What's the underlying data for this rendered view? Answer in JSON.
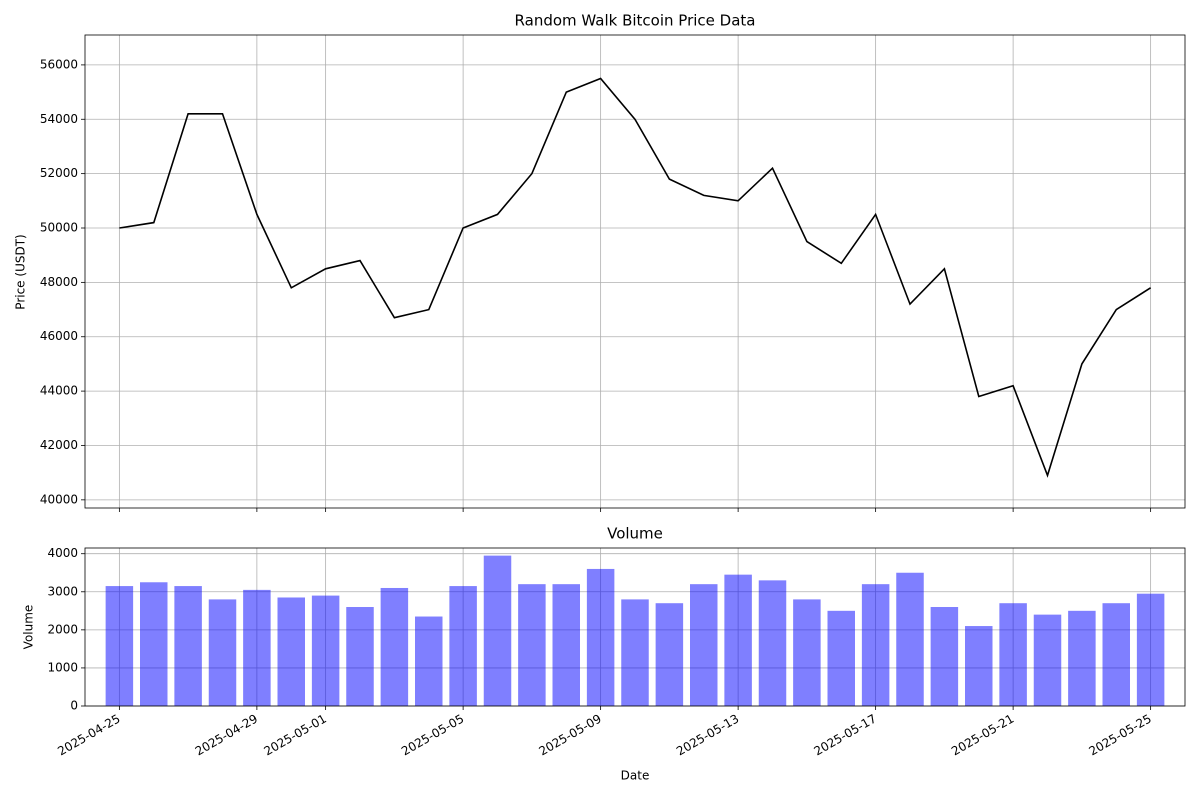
{
  "chart_data": [
    {
      "type": "line",
      "title": "Random Walk Bitcoin Price Data",
      "y_label": "Price (USDT)",
      "color": "#000000",
      "grid": true,
      "x": [
        "2025-04-25",
        "2025-04-26",
        "2025-04-27",
        "2025-04-28",
        "2025-04-29",
        "2025-04-30",
        "2025-05-01",
        "2025-05-02",
        "2025-05-03",
        "2025-05-04",
        "2025-05-05",
        "2025-05-06",
        "2025-05-07",
        "2025-05-08",
        "2025-05-09",
        "2025-05-10",
        "2025-05-11",
        "2025-05-12",
        "2025-05-13",
        "2025-05-14",
        "2025-05-15",
        "2025-05-16",
        "2025-05-17",
        "2025-05-18",
        "2025-05-19",
        "2025-05-20",
        "2025-05-21",
        "2025-05-22",
        "2025-05-23",
        "2025-05-24",
        "2025-05-25"
      ],
      "values": [
        50000,
        50200,
        54200,
        54200,
        50500,
        47800,
        48500,
        48800,
        46700,
        47000,
        50000,
        50500,
        52000,
        55000,
        55500,
        54000,
        51800,
        51200,
        51000,
        52200,
        49500,
        48700,
        50500,
        47200,
        48500,
        43800,
        44200,
        40900,
        45000,
        47000,
        47800
      ],
      "xlim": [
        "2025-04-24",
        "2025-05-26"
      ],
      "xticks": [
        "2025-04-25",
        "2025-04-29",
        "2025-05-01",
        "2025-05-05",
        "2025-05-09",
        "2025-05-13",
        "2025-05-17",
        "2025-05-21",
        "2025-05-25"
      ],
      "ylim": [
        39700,
        57100
      ],
      "yticks": [
        40000,
        42000,
        44000,
        46000,
        48000,
        50000,
        52000,
        54000,
        56000
      ]
    },
    {
      "type": "bar",
      "title": "Volume",
      "x_label": "Date",
      "y_label": "Volume",
      "color": "#0000ff",
      "alpha": 0.5,
      "grid": true,
      "x": [
        "2025-04-25",
        "2025-04-26",
        "2025-04-27",
        "2025-04-28",
        "2025-04-29",
        "2025-04-30",
        "2025-05-01",
        "2025-05-02",
        "2025-05-03",
        "2025-05-04",
        "2025-05-05",
        "2025-05-06",
        "2025-05-07",
        "2025-05-08",
        "2025-05-09",
        "2025-05-10",
        "2025-05-11",
        "2025-05-12",
        "2025-05-13",
        "2025-05-14",
        "2025-05-15",
        "2025-05-16",
        "2025-05-17",
        "2025-05-18",
        "2025-05-19",
        "2025-05-20",
        "2025-05-21",
        "2025-05-22",
        "2025-05-23",
        "2025-05-24",
        "2025-05-25"
      ],
      "values": [
        3150,
        3250,
        3150,
        2800,
        3050,
        2850,
        2900,
        2600,
        3100,
        2350,
        3150,
        3950,
        3200,
        3200,
        3600,
        2800,
        2700,
        3200,
        3450,
        3300,
        2800,
        2500,
        3200,
        3500,
        2600,
        2100,
        2700,
        2400,
        2500,
        2700,
        2950
      ],
      "xlim": [
        "2025-04-24",
        "2025-05-26"
      ],
      "xticks": [
        "2025-04-25",
        "2025-04-29",
        "2025-05-01",
        "2025-05-05",
        "2025-05-09",
        "2025-05-13",
        "2025-05-17",
        "2025-05-21",
        "2025-05-25"
      ],
      "ylim": [
        0,
        4150
      ],
      "yticks": [
        0,
        1000,
        2000,
        3000,
        4000
      ]
    }
  ]
}
